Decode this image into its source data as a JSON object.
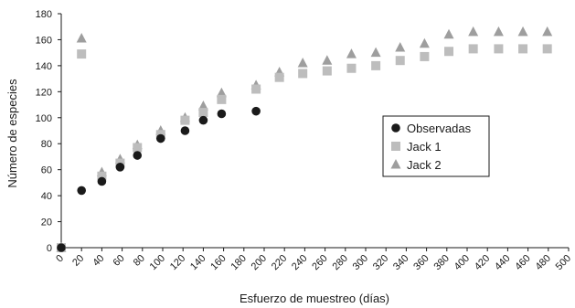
{
  "chart_data": {
    "type": "scatter",
    "xlabel": "Esfuerzo de muestreo (días)",
    "ylabel": "Número de especies",
    "xlim": [
      0,
      500
    ],
    "ylim": [
      0,
      180
    ],
    "xticks": [
      0,
      20,
      40,
      60,
      80,
      100,
      120,
      140,
      160,
      180,
      200,
      220,
      240,
      260,
      280,
      300,
      320,
      340,
      360,
      380,
      400,
      420,
      440,
      460,
      480,
      500
    ],
    "yticks": [
      0,
      20,
      40,
      60,
      80,
      100,
      120,
      140,
      160,
      180
    ],
    "grid": false,
    "legend_position": "right",
    "series": [
      {
        "name": "Observadas",
        "marker": "circle",
        "color": "#1a1a1a",
        "points": [
          [
            0,
            0
          ],
          [
            20,
            44
          ],
          [
            40,
            51
          ],
          [
            58,
            62
          ],
          [
            75,
            71
          ],
          [
            98,
            84
          ],
          [
            122,
            90
          ],
          [
            140,
            98
          ],
          [
            158,
            103
          ],
          [
            192,
            105
          ]
        ]
      },
      {
        "name": "Jack 1",
        "marker": "square",
        "color": "#bdbdbd",
        "points": [
          [
            0,
            0
          ],
          [
            20,
            149
          ],
          [
            40,
            55
          ],
          [
            58,
            65
          ],
          [
            75,
            77
          ],
          [
            98,
            87
          ],
          [
            122,
            98
          ],
          [
            140,
            104
          ],
          [
            158,
            114
          ],
          [
            192,
            122
          ],
          [
            215,
            131
          ],
          [
            238,
            134
          ],
          [
            262,
            136
          ],
          [
            286,
            138
          ],
          [
            310,
            140
          ],
          [
            334,
            144
          ],
          [
            358,
            147
          ],
          [
            382,
            151
          ],
          [
            406,
            153
          ],
          [
            431,
            153
          ],
          [
            455,
            153
          ],
          [
            479,
            153
          ]
        ]
      },
      {
        "name": "Jack 2",
        "marker": "triangle",
        "color": "#9e9e9e",
        "points": [
          [
            0,
            0
          ],
          [
            20,
            161
          ],
          [
            40,
            58
          ],
          [
            58,
            68
          ],
          [
            75,
            79
          ],
          [
            98,
            90
          ],
          [
            122,
            100
          ],
          [
            140,
            109
          ],
          [
            158,
            119
          ],
          [
            192,
            125
          ],
          [
            215,
            135
          ],
          [
            238,
            142
          ],
          [
            262,
            144
          ],
          [
            286,
            149
          ],
          [
            310,
            150
          ],
          [
            334,
            154
          ],
          [
            358,
            157
          ],
          [
            382,
            164
          ],
          [
            406,
            166
          ],
          [
            431,
            166
          ],
          [
            455,
            166
          ],
          [
            479,
            166
          ]
        ]
      }
    ]
  }
}
